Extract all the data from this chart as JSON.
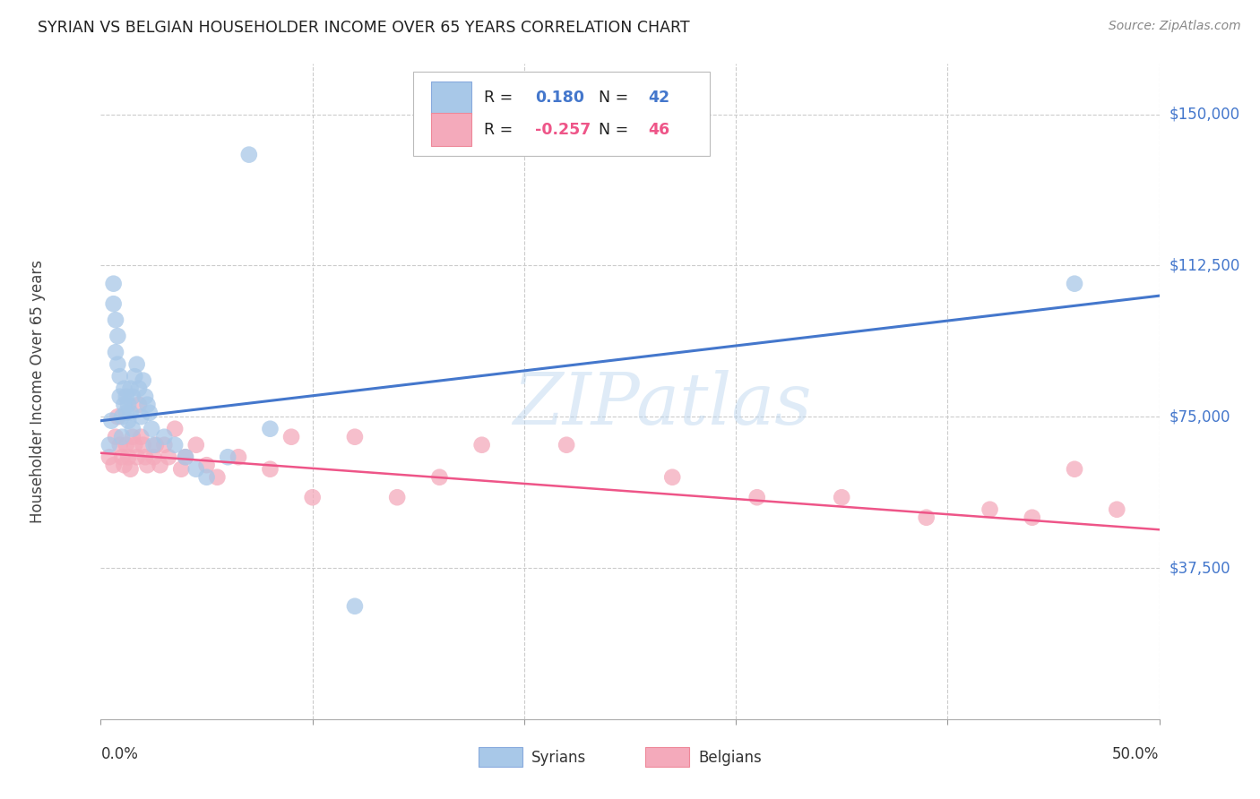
{
  "title": "SYRIAN VS BELGIAN HOUSEHOLDER INCOME OVER 65 YEARS CORRELATION CHART",
  "source": "Source: ZipAtlas.com",
  "ylabel": "Householder Income Over 65 years",
  "watermark": "ZIPatlas",
  "ylim": [
    0,
    162500
  ],
  "xlim": [
    0.0,
    0.5
  ],
  "yticks": [
    37500,
    75000,
    112500,
    150000
  ],
  "ytick_labels": [
    "$37,500",
    "$75,000",
    "$112,500",
    "$150,000"
  ],
  "legend_blue_r": "0.180",
  "legend_blue_n": "42",
  "legend_pink_r": "-0.257",
  "legend_pink_n": "46",
  "blue_color": "#A8C8E8",
  "pink_color": "#F4AABB",
  "blue_line_color": "#4477CC",
  "pink_line_color": "#EE5588",
  "blue_dot_edge": "#88AADD",
  "pink_dot_edge": "#EE8899",
  "syrians_x": [
    0.004,
    0.005,
    0.006,
    0.006,
    0.007,
    0.007,
    0.008,
    0.008,
    0.009,
    0.009,
    0.01,
    0.01,
    0.011,
    0.011,
    0.012,
    0.012,
    0.013,
    0.013,
    0.014,
    0.014,
    0.015,
    0.015,
    0.016,
    0.017,
    0.018,
    0.019,
    0.02,
    0.021,
    0.022,
    0.023,
    0.024,
    0.025,
    0.03,
    0.035,
    0.04,
    0.045,
    0.05,
    0.06,
    0.07,
    0.08,
    0.12,
    0.46
  ],
  "syrians_y": [
    68000,
    74000,
    108000,
    103000,
    99000,
    91000,
    95000,
    88000,
    85000,
    80000,
    75000,
    70000,
    82000,
    78000,
    80000,
    76000,
    78000,
    74000,
    76000,
    82000,
    80000,
    72000,
    85000,
    88000,
    82000,
    75000,
    84000,
    80000,
    78000,
    76000,
    72000,
    68000,
    70000,
    68000,
    65000,
    62000,
    60000,
    65000,
    140000,
    72000,
    28000,
    108000
  ],
  "belgians_x": [
    0.004,
    0.006,
    0.007,
    0.008,
    0.009,
    0.01,
    0.011,
    0.012,
    0.013,
    0.014,
    0.015,
    0.016,
    0.017,
    0.018,
    0.019,
    0.02,
    0.021,
    0.022,
    0.025,
    0.026,
    0.028,
    0.03,
    0.032,
    0.035,
    0.038,
    0.04,
    0.045,
    0.05,
    0.055,
    0.065,
    0.08,
    0.09,
    0.1,
    0.12,
    0.14,
    0.16,
    0.18,
    0.22,
    0.27,
    0.31,
    0.35,
    0.39,
    0.42,
    0.44,
    0.46,
    0.48
  ],
  "belgians_y": [
    65000,
    63000,
    70000,
    75000,
    68000,
    65000,
    63000,
    68000,
    65000,
    62000,
    70000,
    68000,
    65000,
    78000,
    70000,
    68000,
    65000,
    63000,
    65000,
    68000,
    63000,
    68000,
    65000,
    72000,
    62000,
    65000,
    68000,
    63000,
    60000,
    65000,
    62000,
    70000,
    55000,
    70000,
    55000,
    60000,
    68000,
    68000,
    60000,
    55000,
    55000,
    50000,
    52000,
    50000,
    62000,
    52000
  ],
  "blue_line_x0": 0.0,
  "blue_line_y0": 74000,
  "blue_line_x1": 0.5,
  "blue_line_y1": 105000,
  "pink_line_x0": 0.0,
  "pink_line_y0": 66000,
  "pink_line_x1": 0.5,
  "pink_line_y1": 47000
}
